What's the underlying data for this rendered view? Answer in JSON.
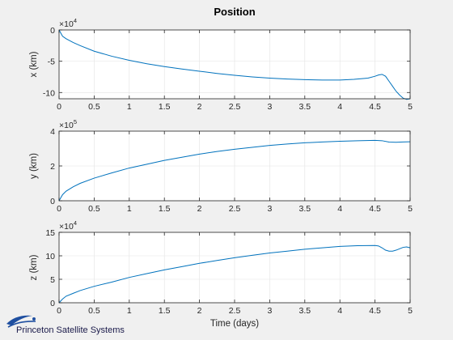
{
  "chart_data": [
    {
      "type": "line",
      "title": "Position",
      "ylabel": "x (km)",
      "xlabel": "",
      "exponent": "4",
      "xlim": [
        0,
        5
      ],
      "ylim": [
        -110000,
        0
      ],
      "xticks": [
        0,
        0.5,
        1,
        1.5,
        2,
        2.5,
        3,
        3.5,
        4,
        4.5,
        5
      ],
      "xticklabels": [
        "0",
        "0.5",
        "1",
        "1.5",
        "2",
        "2.5",
        "3",
        "3.5",
        "4",
        "4.5",
        "5"
      ],
      "yticks": [
        0,
        -50000,
        -100000
      ],
      "yticklabels": [
        "0",
        "-5",
        "-10"
      ],
      "grid": true,
      "color": "#0072bd",
      "series": [
        {
          "x": [
            0,
            0.05,
            0.1,
            0.2,
            0.3,
            0.5,
            0.75,
            1.0,
            1.25,
            1.5,
            1.75,
            2.0,
            2.25,
            2.5,
            2.75,
            3.0,
            3.25,
            3.5,
            3.75,
            4.0,
            4.2,
            4.4,
            4.5,
            4.55,
            4.6,
            4.65,
            4.7,
            4.75,
            4.8,
            4.85,
            4.9,
            4.95,
            5.0
          ],
          "y": [
            0,
            -10000,
            -14000,
            -20000,
            -25000,
            -34000,
            -42000,
            -48500,
            -54000,
            -58500,
            -62500,
            -66000,
            -69500,
            -72500,
            -75000,
            -77000,
            -78500,
            -79500,
            -80000,
            -80000,
            -79000,
            -77000,
            -74000,
            -72000,
            -71000,
            -74000,
            -82000,
            -90000,
            -98000,
            -104000,
            -109000,
            -111000,
            -110000
          ]
        }
      ]
    },
    {
      "type": "line",
      "title": "",
      "ylabel": "y (km)",
      "xlabel": "",
      "exponent": "5",
      "xlim": [
        0,
        5
      ],
      "ylim": [
        0,
        400000
      ],
      "xticks": [
        0,
        0.5,
        1,
        1.5,
        2,
        2.5,
        3,
        3.5,
        4,
        4.5,
        5
      ],
      "xticklabels": [
        "0",
        "0.5",
        "1",
        "1.5",
        "2",
        "2.5",
        "3",
        "3.5",
        "4",
        "4.5",
        "5"
      ],
      "yticks": [
        0,
        200000,
        400000
      ],
      "yticklabels": [
        "0",
        "2",
        "4"
      ],
      "grid": true,
      "color": "#0072bd",
      "series": [
        {
          "x": [
            0,
            0.05,
            0.1,
            0.2,
            0.3,
            0.5,
            0.75,
            1.0,
            1.25,
            1.5,
            1.75,
            2.0,
            2.25,
            2.5,
            2.75,
            3.0,
            3.25,
            3.5,
            3.75,
            4.0,
            4.25,
            4.5,
            4.6,
            4.7,
            4.8,
            4.9,
            5.0
          ],
          "y": [
            0,
            35000,
            55000,
            80000,
            100000,
            130000,
            160000,
            188000,
            210000,
            232000,
            250000,
            268000,
            283000,
            296000,
            307000,
            318000,
            326000,
            333000,
            338000,
            342000,
            345000,
            347000,
            345000,
            337000,
            336000,
            338000,
            339000
          ]
        }
      ]
    },
    {
      "type": "line",
      "title": "",
      "ylabel": "z (km)",
      "xlabel": "Time (days)",
      "exponent": "4",
      "xlim": [
        0,
        5
      ],
      "ylim": [
        0,
        150000
      ],
      "xticks": [
        0,
        0.5,
        1,
        1.5,
        2,
        2.5,
        3,
        3.5,
        4,
        4.5,
        5
      ],
      "xticklabels": [
        "0",
        "0.5",
        "1",
        "1.5",
        "2",
        "2.5",
        "3",
        "3.5",
        "4",
        "4.5",
        "5"
      ],
      "yticks": [
        0,
        50000,
        100000,
        150000
      ],
      "yticklabels": [
        "0",
        "5",
        "10",
        "15"
      ],
      "grid": true,
      "color": "#0072bd",
      "series": [
        {
          "x": [
            0,
            0.05,
            0.1,
            0.2,
            0.3,
            0.5,
            0.75,
            1.0,
            1.25,
            1.5,
            1.75,
            2.0,
            2.25,
            2.5,
            2.75,
            3.0,
            3.25,
            3.5,
            3.75,
            4.0,
            4.25,
            4.5,
            4.55,
            4.6,
            4.65,
            4.7,
            4.75,
            4.8,
            4.85,
            4.9,
            4.95,
            5.0
          ],
          "y": [
            0,
            8000,
            14000,
            20000,
            26000,
            35000,
            44000,
            54000,
            62000,
            70000,
            77000,
            84000,
            90000,
            96000,
            101000,
            106000,
            110000,
            114000,
            117000,
            120000,
            121500,
            122000,
            121000,
            117000,
            112000,
            110000,
            110000,
            112000,
            115000,
            118000,
            119000,
            117000
          ]
        }
      ]
    }
  ],
  "branding": {
    "company": "Princeton Satellite Systems"
  }
}
